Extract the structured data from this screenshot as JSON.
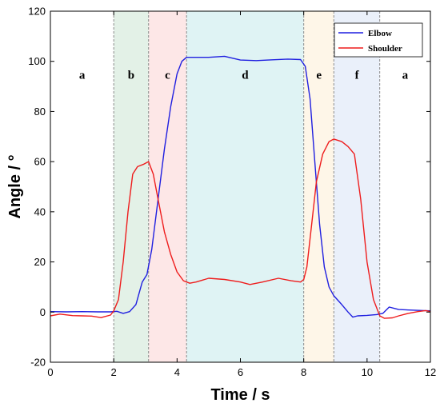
{
  "chart_data": {
    "type": "line",
    "title": "",
    "xlabel": "Time / s",
    "ylabel": "Angle / °",
    "xlim": [
      0,
      12
    ],
    "ylim": [
      -20,
      120
    ],
    "xticks": [
      0,
      2,
      4,
      6,
      8,
      10,
      12
    ],
    "yticks": [
      -20,
      0,
      20,
      40,
      60,
      80,
      100,
      120
    ],
    "grid": false,
    "legend_position": "top-right",
    "phases": [
      {
        "label": "a",
        "start": 0,
        "end": 2,
        "color": "#ffffff",
        "label_x": 1.0
      },
      {
        "label": "b",
        "start": 2,
        "end": 3.1,
        "color": "#e3f1e7",
        "label_x": 2.55
      },
      {
        "label": "c",
        "start": 3.1,
        "end": 4.3,
        "color": "#fde7e7",
        "label_x": 3.7
      },
      {
        "label": "d",
        "start": 4.3,
        "end": 8.0,
        "color": "#dff3f4",
        "label_x": 6.15
      },
      {
        "label": "e",
        "start": 8.0,
        "end": 8.95,
        "color": "#fef6e8",
        "label_x": 8.48
      },
      {
        "label": "f",
        "start": 8.95,
        "end": 10.4,
        "color": "#eaf0fa",
        "label_x": 9.68
      },
      {
        "label": "a",
        "start": 10.4,
        "end": 12,
        "color": "#ffffff",
        "label_x": 11.2
      }
    ],
    "phase_label_y": 93,
    "series": [
      {
        "name": "Elbow",
        "color": "#1f1fe0",
        "points": [
          [
            0,
            0.2
          ],
          [
            0.5,
            0.1
          ],
          [
            1.0,
            0.2
          ],
          [
            1.5,
            0.1
          ],
          [
            1.9,
            0.1
          ],
          [
            2.1,
            0.3
          ],
          [
            2.3,
            -0.5
          ],
          [
            2.5,
            0.2
          ],
          [
            2.7,
            3
          ],
          [
            2.9,
            12
          ],
          [
            3.05,
            15
          ],
          [
            3.2,
            25
          ],
          [
            3.4,
            45
          ],
          [
            3.6,
            65
          ],
          [
            3.8,
            82
          ],
          [
            4.0,
            95
          ],
          [
            4.15,
            100
          ],
          [
            4.3,
            101.6
          ],
          [
            4.6,
            101.6
          ],
          [
            5.0,
            101.6
          ],
          [
            5.5,
            102
          ],
          [
            6.0,
            100.5
          ],
          [
            6.5,
            100.3
          ],
          [
            7.0,
            100.6
          ],
          [
            7.5,
            100.9
          ],
          [
            7.9,
            100.7
          ],
          [
            8.05,
            98
          ],
          [
            8.2,
            85
          ],
          [
            8.35,
            60
          ],
          [
            8.5,
            35
          ],
          [
            8.65,
            18
          ],
          [
            8.8,
            10
          ],
          [
            8.95,
            6.5
          ],
          [
            9.2,
            3
          ],
          [
            9.4,
            0
          ],
          [
            9.55,
            -2
          ],
          [
            9.7,
            -1.5
          ],
          [
            10.0,
            -1.3
          ],
          [
            10.3,
            -1
          ],
          [
            10.5,
            -0.5
          ],
          [
            10.7,
            2
          ],
          [
            10.85,
            1.5
          ],
          [
            11.0,
            1
          ],
          [
            11.4,
            0.8
          ],
          [
            11.8,
            0.6
          ],
          [
            12,
            0.5
          ]
        ]
      },
      {
        "name": "Shoulder",
        "color": "#ee1c1c",
        "points": [
          [
            0,
            -1.5
          ],
          [
            0.3,
            -0.8
          ],
          [
            0.7,
            -1.4
          ],
          [
            1.0,
            -1.5
          ],
          [
            1.3,
            -1.6
          ],
          [
            1.6,
            -2.2
          ],
          [
            1.9,
            -1.2
          ],
          [
            2.0,
            0.5
          ],
          [
            2.15,
            5
          ],
          [
            2.3,
            20
          ],
          [
            2.45,
            40
          ],
          [
            2.6,
            55
          ],
          [
            2.75,
            58
          ],
          [
            2.95,
            59
          ],
          [
            3.1,
            60
          ],
          [
            3.25,
            55
          ],
          [
            3.4,
            45
          ],
          [
            3.6,
            32
          ],
          [
            3.8,
            23
          ],
          [
            4.0,
            16
          ],
          [
            4.2,
            12.5
          ],
          [
            4.4,
            11.5
          ],
          [
            4.6,
            12
          ],
          [
            5.0,
            13.5
          ],
          [
            5.5,
            13
          ],
          [
            6.0,
            12
          ],
          [
            6.3,
            11
          ],
          [
            6.7,
            12
          ],
          [
            7.2,
            13.5
          ],
          [
            7.6,
            12.5
          ],
          [
            7.9,
            12
          ],
          [
            8.0,
            13
          ],
          [
            8.1,
            18
          ],
          [
            8.25,
            35
          ],
          [
            8.4,
            52
          ],
          [
            8.6,
            63
          ],
          [
            8.8,
            68
          ],
          [
            8.95,
            69
          ],
          [
            9.2,
            68
          ],
          [
            9.4,
            66
          ],
          [
            9.6,
            63
          ],
          [
            9.8,
            45
          ],
          [
            10.0,
            20
          ],
          [
            10.2,
            5
          ],
          [
            10.4,
            -1.5
          ],
          [
            10.55,
            -2.5
          ],
          [
            10.8,
            -2.3
          ],
          [
            11.0,
            -1.5
          ],
          [
            11.3,
            -0.5
          ],
          [
            11.6,
            0.2
          ],
          [
            11.85,
            0.6
          ],
          [
            12,
            0.2
          ]
        ]
      }
    ]
  }
}
